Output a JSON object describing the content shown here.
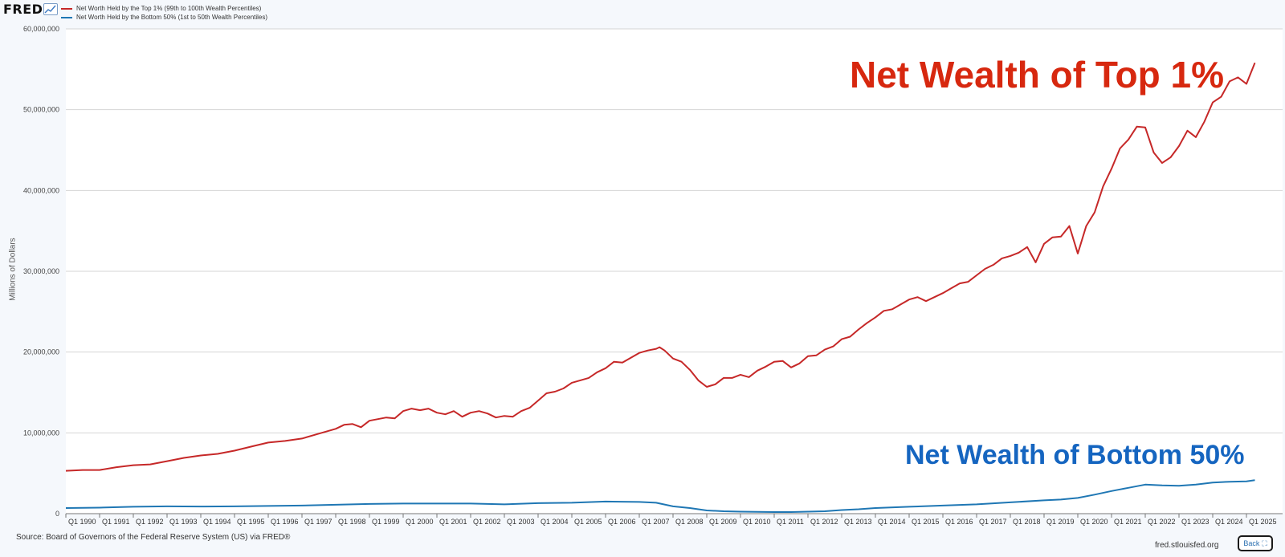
{
  "header": {
    "logo_text": "FRED",
    "logo_icon": "line-chart-icon"
  },
  "legend": {
    "top1_label": "Net Worth Held by the Top 1% (99th to 100th Wealth Percentiles)",
    "bottom50_label": "Net Worth Held by the Bottom 50% (1st to 50th Wealth Percentiles)"
  },
  "annotations": {
    "top1": "Net Wealth of Top 1%",
    "bottom50": "Net Wealth of Bottom 50%"
  },
  "footer": {
    "source": "Source: Board of Governors of the Federal Reserve System (US) via FRED®",
    "site": "fred.stlouisfed.org",
    "back_label": "Back",
    "back_icon": "fullscreen-icon"
  },
  "chart_data": {
    "type": "line",
    "title": "",
    "xlabel": "",
    "ylabel": "Millions of Dollars",
    "ylim": [
      0,
      60000000
    ],
    "xlim": [
      1990,
      2025.3
    ],
    "grid": true,
    "legend_position": "top-left",
    "yticks": [
      0,
      10000000,
      20000000,
      30000000,
      40000000,
      50000000,
      60000000
    ],
    "ytick_labels": [
      "0",
      "10,000,000",
      "20,000,000",
      "30,000,000",
      "40,000,000",
      "50,000,000",
      "60,000,000"
    ],
    "xticks": [
      1990,
      1991,
      1992,
      1993,
      1994,
      1995,
      1996,
      1997,
      1998,
      1999,
      2000,
      2001,
      2002,
      2003,
      2004,
      2005,
      2006,
      2007,
      2008,
      2009,
      2010,
      2011,
      2012,
      2013,
      2014,
      2015,
      2016,
      2017,
      2018,
      2019,
      2020,
      2021,
      2022,
      2023,
      2024,
      2025
    ],
    "xtick_labels": [
      "Q1 1990",
      "Q1 1991",
      "Q1 1992",
      "Q1 1993",
      "Q1 1994",
      "Q1 1995",
      "Q1 1996",
      "Q1 1997",
      "Q1 1998",
      "Q1 1999",
      "Q1 2000",
      "Q1 2001",
      "Q1 2002",
      "Q1 2003",
      "Q1 2004",
      "Q1 2005",
      "Q1 2006",
      "Q1 2007",
      "Q1 2008",
      "Q1 2009",
      "Q1 2010",
      "Q1 2011",
      "Q1 2012",
      "Q1 2013",
      "Q1 2014",
      "Q1 2015",
      "Q1 2016",
      "Q1 2017",
      "Q1 2018",
      "Q1 2019",
      "Q1 2020",
      "Q1 2021",
      "Q1 2022",
      "Q1 2023",
      "Q1 2024",
      "Q1 2025"
    ],
    "series": [
      {
        "name": "Net Worth Held by the Top 1% (99th to 100th Wealth Percentiles)",
        "color": "#c62828",
        "points": [
          [
            1990,
            5300000
          ],
          [
            1990.5,
            5400000
          ],
          [
            1991,
            5400000
          ],
          [
            1991.5,
            5750000
          ],
          [
            1992,
            6000000
          ],
          [
            1992.5,
            6100000
          ],
          [
            1993,
            6500000
          ],
          [
            1993.5,
            6900000
          ],
          [
            1994,
            7200000
          ],
          [
            1994.5,
            7400000
          ],
          [
            1995,
            7800000
          ],
          [
            1995.5,
            8300000
          ],
          [
            1996,
            8800000
          ],
          [
            1996.5,
            9000000
          ],
          [
            1997,
            9300000
          ],
          [
            1997.5,
            9900000
          ],
          [
            1998,
            10500000
          ],
          [
            1998.25,
            11000000
          ],
          [
            1998.5,
            11100000
          ],
          [
            1998.75,
            10700000
          ],
          [
            1999,
            11500000
          ],
          [
            1999.5,
            11900000
          ],
          [
            1999.75,
            11800000
          ],
          [
            2000,
            12700000
          ],
          [
            2000.25,
            13000000
          ],
          [
            2000.5,
            12800000
          ],
          [
            2000.75,
            13000000
          ],
          [
            2001,
            12500000
          ],
          [
            2001.25,
            12300000
          ],
          [
            2001.5,
            12700000
          ],
          [
            2001.75,
            12000000
          ],
          [
            2002,
            12500000
          ],
          [
            2002.25,
            12700000
          ],
          [
            2002.5,
            12400000
          ],
          [
            2002.75,
            11900000
          ],
          [
            2003,
            12100000
          ],
          [
            2003.25,
            12000000
          ],
          [
            2003.5,
            12700000
          ],
          [
            2003.75,
            13100000
          ],
          [
            2004,
            14000000
          ],
          [
            2004.25,
            14900000
          ],
          [
            2004.5,
            15100000
          ],
          [
            2004.75,
            15500000
          ],
          [
            2005,
            16200000
          ],
          [
            2005.5,
            16800000
          ],
          [
            2005.75,
            17500000
          ],
          [
            2006,
            18000000
          ],
          [
            2006.25,
            18800000
          ],
          [
            2006.5,
            18700000
          ],
          [
            2006.75,
            19300000
          ],
          [
            2007,
            19900000
          ],
          [
            2007.25,
            20200000
          ],
          [
            2007.5,
            20400000
          ],
          [
            2007.6,
            20600000
          ],
          [
            2007.75,
            20200000
          ],
          [
            2008,
            19200000
          ],
          [
            2008.25,
            18800000
          ],
          [
            2008.5,
            17800000
          ],
          [
            2008.75,
            16500000
          ],
          [
            2009,
            15700000
          ],
          [
            2009.25,
            16000000
          ],
          [
            2009.5,
            16800000
          ],
          [
            2009.75,
            16800000
          ],
          [
            2010,
            17200000
          ],
          [
            2010.25,
            16900000
          ],
          [
            2010.5,
            17700000
          ],
          [
            2010.75,
            18200000
          ],
          [
            2011,
            18800000
          ],
          [
            2011.25,
            18900000
          ],
          [
            2011.5,
            18100000
          ],
          [
            2011.75,
            18600000
          ],
          [
            2012,
            19500000
          ],
          [
            2012.25,
            19600000
          ],
          [
            2012.5,
            20300000
          ],
          [
            2012.75,
            20700000
          ],
          [
            2013,
            21600000
          ],
          [
            2013.25,
            21900000
          ],
          [
            2013.5,
            22800000
          ],
          [
            2013.75,
            23600000
          ],
          [
            2014,
            24300000
          ],
          [
            2014.25,
            25100000
          ],
          [
            2014.5,
            25300000
          ],
          [
            2014.75,
            25900000
          ],
          [
            2015,
            26500000
          ],
          [
            2015.25,
            26800000
          ],
          [
            2015.5,
            26300000
          ],
          [
            2015.75,
            26800000
          ],
          [
            2016,
            27300000
          ],
          [
            2016.25,
            27900000
          ],
          [
            2016.5,
            28500000
          ],
          [
            2016.75,
            28700000
          ],
          [
            2017,
            29500000
          ],
          [
            2017.25,
            30300000
          ],
          [
            2017.5,
            30800000
          ],
          [
            2017.75,
            31600000
          ],
          [
            2018,
            31900000
          ],
          [
            2018.25,
            32300000
          ],
          [
            2018.5,
            33000000
          ],
          [
            2018.75,
            31100000
          ],
          [
            2019,
            33400000
          ],
          [
            2019.25,
            34200000
          ],
          [
            2019.5,
            34300000
          ],
          [
            2019.75,
            35600000
          ],
          [
            2020,
            32200000
          ],
          [
            2020.25,
            35600000
          ],
          [
            2020.5,
            37300000
          ],
          [
            2020.75,
            40500000
          ],
          [
            2021,
            42700000
          ],
          [
            2021.25,
            45200000
          ],
          [
            2021.5,
            46300000
          ],
          [
            2021.75,
            47900000
          ],
          [
            2022,
            47800000
          ],
          [
            2022.25,
            44700000
          ],
          [
            2022.5,
            43400000
          ],
          [
            2022.75,
            44100000
          ],
          [
            2023,
            45500000
          ],
          [
            2023.25,
            47400000
          ],
          [
            2023.5,
            46600000
          ],
          [
            2023.75,
            48500000
          ],
          [
            2024,
            50900000
          ],
          [
            2024.25,
            51600000
          ],
          [
            2024.5,
            53500000
          ],
          [
            2024.75,
            54000000
          ],
          [
            2025,
            53200000
          ],
          [
            2025.25,
            55800000
          ]
        ]
      },
      {
        "name": "Net Worth Held by the Bottom 50% (1st to 50th Wealth Percentiles)",
        "color": "#1f77b4",
        "points": [
          [
            1990,
            700000
          ],
          [
            1991,
            750000
          ],
          [
            1992,
            850000
          ],
          [
            1993,
            900000
          ],
          [
            1994,
            880000
          ],
          [
            1995,
            900000
          ],
          [
            1996,
            950000
          ],
          [
            1997,
            1000000
          ],
          [
            1998,
            1100000
          ],
          [
            1999,
            1200000
          ],
          [
            2000,
            1250000
          ],
          [
            2001,
            1250000
          ],
          [
            2002,
            1250000
          ],
          [
            2003,
            1150000
          ],
          [
            2004,
            1300000
          ],
          [
            2005,
            1350000
          ],
          [
            2006,
            1500000
          ],
          [
            2007,
            1450000
          ],
          [
            2007.5,
            1350000
          ],
          [
            2008,
            900000
          ],
          [
            2008.5,
            700000
          ],
          [
            2009,
            400000
          ],
          [
            2009.5,
            300000
          ],
          [
            2010,
            250000
          ],
          [
            2010.5,
            220000
          ],
          [
            2011,
            200000
          ],
          [
            2011.5,
            200000
          ],
          [
            2012,
            250000
          ],
          [
            2012.5,
            300000
          ],
          [
            2013,
            450000
          ],
          [
            2013.5,
            550000
          ],
          [
            2014,
            700000
          ],
          [
            2015,
            850000
          ],
          [
            2016,
            1000000
          ],
          [
            2017,
            1150000
          ],
          [
            2018,
            1400000
          ],
          [
            2019,
            1650000
          ],
          [
            2019.5,
            1750000
          ],
          [
            2020,
            1950000
          ],
          [
            2020.5,
            2350000
          ],
          [
            2021,
            2800000
          ],
          [
            2021.5,
            3200000
          ],
          [
            2022,
            3600000
          ],
          [
            2022.5,
            3500000
          ],
          [
            2023,
            3450000
          ],
          [
            2023.5,
            3600000
          ],
          [
            2024,
            3850000
          ],
          [
            2024.5,
            3950000
          ],
          [
            2025,
            4000000
          ],
          [
            2025.25,
            4150000
          ]
        ]
      }
    ]
  }
}
